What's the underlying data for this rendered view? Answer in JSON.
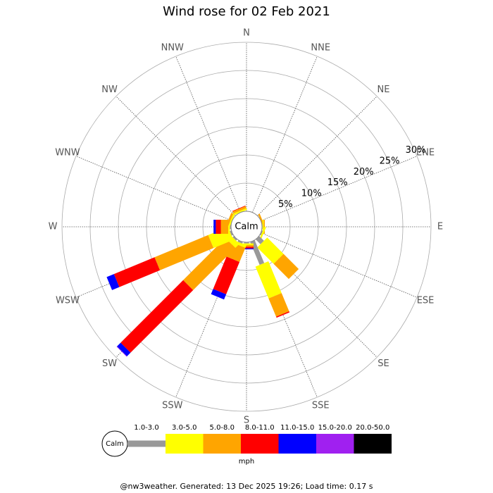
{
  "chart_data": {
    "type": "windrose",
    "title": "Wind rose for 02 Feb 2021",
    "categories": [
      "N",
      "NNE",
      "NE",
      "ENE",
      "E",
      "ESE",
      "SE",
      "SSE",
      "S",
      "SSW",
      "SW",
      "WSW",
      "W",
      "WNW",
      "NW",
      "NNW"
    ],
    "series": [
      {
        "name": "1.0-3.0",
        "color": "#999999",
        "values": [
          0,
          0,
          0,
          0,
          0.1,
          0.2,
          1.2,
          4.4,
          0.2,
          0.3,
          0.3,
          0.3,
          0.2,
          0,
          0,
          0
        ]
      },
      {
        "name": "3.0-5.0",
        "color": "#ffff00",
        "values": [
          0,
          0,
          0,
          0,
          0.2,
          0.3,
          4.1,
          6.1,
          0.3,
          0.5,
          1.0,
          3.8,
          0.3,
          0.3,
          0,
          0.3
        ]
      },
      {
        "name": "5.0-8.0",
        "color": "#ffa500",
        "values": [
          0,
          0,
          0,
          0.3,
          0.2,
          0,
          3.8,
          3.5,
          0.3,
          2.7,
          10.6,
          10.3,
          1.3,
          0.4,
          0,
          0.4
        ]
      },
      {
        "name": "8.0-11.0",
        "color": "#ff0000",
        "values": [
          0,
          0,
          0,
          0,
          0,
          0,
          0,
          0.2,
          0.3,
          6.2,
          15.7,
          7.8,
          0.9,
          0,
          0,
          0.1
        ]
      },
      {
        "name": "11.0-15.0",
        "color": "#0000ff",
        "values": [
          0,
          0,
          0,
          0,
          0,
          0,
          0,
          0,
          0.15,
          1.0,
          0.9,
          1.4,
          0.4,
          0,
          0,
          0
        ]
      },
      {
        "name": "15.0-20.0",
        "color": "#a020f0",
        "values": [
          0,
          0,
          0,
          0,
          0,
          0,
          0,
          0,
          0,
          0,
          0.1,
          0,
          0,
          0,
          0,
          0
        ]
      },
      {
        "name": "20.0-50.0",
        "color": "#000000",
        "values": [
          0,
          0,
          0,
          0,
          0,
          0,
          0,
          0,
          0,
          0,
          0,
          0,
          0,
          0,
          0,
          0
        ]
      }
    ],
    "rlim": [
      0,
      30
    ],
    "rticks": [
      {
        "value": 5,
        "label": "5%"
      },
      {
        "value": 10,
        "label": "10%"
      },
      {
        "value": 15,
        "label": "15%"
      },
      {
        "value": 20,
        "label": "20%"
      },
      {
        "value": 25,
        "label": "25%"
      },
      {
        "value": 30,
        "label": "30%"
      }
    ],
    "calm_label": "Calm",
    "legend_title": "mph",
    "grid": true
  },
  "footer": "@nw3weather. Generated: 13 Dec 2025 19:26; Load time: 0.17 s"
}
